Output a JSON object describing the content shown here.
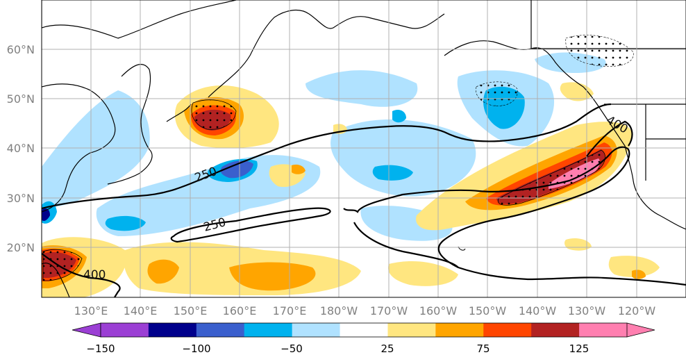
{
  "map": {
    "lat_labels": [
      "60°N",
      "50°N",
      "40°N",
      "30°N",
      "20°N"
    ],
    "lon_labels": [
      "130°E",
      "140°E",
      "150°E",
      "160°E",
      "170°E",
      "180°W",
      "170°W",
      "160°W",
      "150°W",
      "140°W",
      "130°W",
      "120°W"
    ],
    "contour_labels": [
      "250",
      "250",
      "400",
      "400"
    ]
  },
  "colorbar": {
    "tick_labels": [
      "−150",
      "−100",
      "−50",
      "25",
      "75",
      "125"
    ],
    "colors": [
      "#9b3fd4",
      "#00008b",
      "#3a5fcd",
      "#00b2ee",
      "#b0e2ff",
      "#ffffff",
      "#ffe680",
      "#ffa500",
      "#ff4500",
      "#b22222",
      "#ff7fb0"
    ]
  },
  "colors": {
    "land_outline": "#000000",
    "grid": "#b0b0b0",
    "contour": "#000000"
  }
}
